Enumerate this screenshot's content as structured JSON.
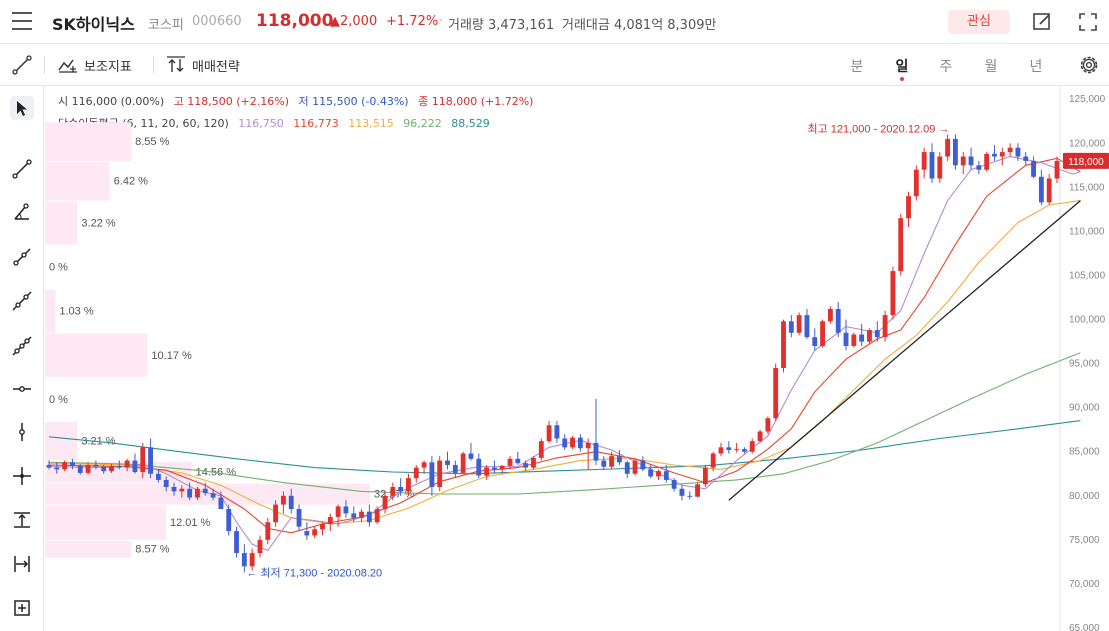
{
  "header": {
    "name": "SK하이닉스",
    "market": "코스피",
    "code": "000660",
    "price": "118,000",
    "change": "▲2,000",
    "change_pct": "+1.72%",
    "separator": "·",
    "volume": "거래량 3,473,161",
    "amount": "거래대금 4,081억 8,309만",
    "favorite_label": "관심"
  },
  "toolbar": {
    "indicators_label": "보조지표",
    "strategy_label": "매매전략",
    "periods": [
      "분",
      "일",
      "주",
      "월",
      "년"
    ],
    "active_period": "일"
  },
  "legend": {
    "open": "시 116,000 (0.00%)",
    "high": "고 118,500 (+2.16%)",
    "low": "저 115,500 (-0.43%)",
    "close": "종 118,000 (+1.72%)",
    "ma_title": "단순이동평균 (6, 11, 20, 60, 120)",
    "ma_values": [
      "116,750",
      "116,773",
      "113,515",
      "96,222",
      "88,529"
    ]
  },
  "left_tools": [
    "cursor-arrow-icon",
    "line-icon",
    "angle-line-icon",
    "ray-icon",
    "extended-line-icon",
    "trend-channel-icon",
    "horizontal-line-icon",
    "vertical-line-icon",
    "crosshair-icon",
    "price-range-icon",
    "date-range-icon",
    "add-box-icon"
  ],
  "colors": {
    "up": "#e0312e",
    "down": "#3e5fd3",
    "ma6": "#b58ad9",
    "ma11": "#e8442c",
    "ma20": "#f2ad3c",
    "ma60": "#6fb26b",
    "ma120": "#2b8f97",
    "volume_profile": "#fde8f4"
  },
  "chart_data": {
    "type": "candlestick",
    "y_ticks": [
      125000,
      120000,
      115000,
      110000,
      105000,
      100000,
      95000,
      90000,
      85000,
      80000,
      75000,
      70000,
      65000
    ],
    "y_tick_labels": [
      "125,000",
      "120,000",
      "115,000",
      "110,000",
      "105,000",
      "100,000",
      "95,000",
      "90,000",
      "85,000",
      "80,000",
      "75,000",
      "70,000",
      "65,000"
    ],
    "ylim": [
      65000,
      126500
    ],
    "current_price_label": "118,000",
    "current_price": 118000,
    "high_annotation": "최고 121,000 - 2020.12.09 →",
    "high_value": 121000,
    "low_annotation": "← 최저 71,300 - 2020.08.20",
    "low_value": 71300,
    "volume_profile": [
      {
        "label": "8.55 %",
        "pct": 8.55,
        "low": 118000,
        "high": 122500
      },
      {
        "label": "6.42 %",
        "pct": 6.42,
        "low": 113500,
        "high": 118000
      },
      {
        "label": "3.22 %",
        "pct": 3.22,
        "low": 108500,
        "high": 113500
      },
      {
        "label": "0 %",
        "pct": 0,
        "low": 103500,
        "high": 108500
      },
      {
        "label": "1.03 %",
        "pct": 1.03,
        "low": 98500,
        "high": 103500
      },
      {
        "label": "10.17 %",
        "pct": 10.17,
        "low": 93500,
        "high": 98500
      },
      {
        "label": "0 %",
        "pct": 0,
        "low": 88500,
        "high": 93500
      },
      {
        "label": "3.21 %",
        "pct": 3.21,
        "low": 84000,
        "high": 88500
      },
      {
        "label": "14.56 %",
        "pct": 14.56,
        "low": 81500,
        "high": 84000
      },
      {
        "label": "32.27 %",
        "pct": 32.27,
        "low": 79000,
        "high": 81500
      },
      {
        "label": "12.01 %",
        "pct": 12.01,
        "low": 75000,
        "high": 79000
      },
      {
        "label": "8.57 %",
        "pct": 8.57,
        "low": 73000,
        "high": 75000
      }
    ],
    "candles": [
      [
        83500,
        84000,
        83000,
        83200
      ],
      [
        83200,
        83800,
        82500,
        83000
      ],
      [
        83000,
        84000,
        82800,
        83800
      ],
      [
        83800,
        84200,
        83000,
        83400
      ],
      [
        83400,
        83600,
        82400,
        82600
      ],
      [
        82600,
        83800,
        82400,
        83500
      ],
      [
        83500,
        84000,
        83000,
        83300
      ],
      [
        83300,
        83500,
        82500,
        82800
      ],
      [
        82800,
        83600,
        82600,
        83400
      ],
      [
        83400,
        84000,
        83000,
        83200
      ],
      [
        83200,
        84200,
        82800,
        84000
      ],
      [
        84000,
        84800,
        82500,
        82700
      ],
      [
        82700,
        86000,
        82000,
        85500
      ],
      [
        85500,
        86500,
        82000,
        82500
      ],
      [
        82500,
        83000,
        81500,
        81800
      ],
      [
        81800,
        82200,
        80500,
        81000
      ],
      [
        81000,
        81500,
        80000,
        80500
      ],
      [
        80500,
        81200,
        79800,
        80800
      ],
      [
        80800,
        81500,
        79500,
        79800
      ],
      [
        79800,
        81000,
        79500,
        80800
      ],
      [
        80800,
        81500,
        80000,
        80300
      ],
      [
        80300,
        80800,
        79500,
        79800
      ],
      [
        79800,
        80500,
        78500,
        78500
      ],
      [
        78500,
        79000,
        75500,
        76000
      ],
      [
        76000,
        76500,
        73000,
        73500
      ],
      [
        73500,
        74500,
        71300,
        72000
      ],
      [
        72000,
        74000,
        71500,
        73500
      ],
      [
        73500,
        75500,
        73000,
        75000
      ],
      [
        75000,
        77500,
        74500,
        77000
      ],
      [
        77000,
        79500,
        76500,
        79000
      ],
      [
        79000,
        80500,
        78000,
        80000
      ],
      [
        80000,
        80800,
        78000,
        78500
      ],
      [
        78500,
        79000,
        76000,
        76500
      ],
      [
        76000,
        77000,
        75000,
        75500
      ],
      [
        75500,
        76500,
        75200,
        76200
      ],
      [
        76200,
        77000,
        75500,
        76800
      ],
      [
        76800,
        78000,
        76000,
        77600
      ],
      [
        77600,
        79000,
        76500,
        78800
      ],
      [
        78800,
        79500,
        77500,
        78000
      ],
      [
        78000,
        78800,
        77000,
        77500
      ],
      [
        77500,
        78500,
        77000,
        78200
      ],
      [
        78200,
        79000,
        76500,
        77000
      ],
      [
        77000,
        78800,
        76800,
        78500
      ],
      [
        78500,
        80500,
        78000,
        80000
      ],
      [
        80000,
        81500,
        79500,
        81000
      ],
      [
        81000,
        82000,
        80000,
        80500
      ],
      [
        80500,
        82500,
        80000,
        82000
      ],
      [
        82000,
        83500,
        81500,
        83200
      ],
      [
        83200,
        84000,
        82500,
        83800
      ],
      [
        83800,
        84500,
        80000,
        81000
      ],
      [
        81000,
        84500,
        80500,
        84000
      ],
      [
        84000,
        85000,
        83000,
        83500
      ],
      [
        83500,
        84000,
        82000,
        82600
      ],
      [
        82600,
        85000,
        82500,
        84800
      ],
      [
        84800,
        86000,
        84000,
        84200
      ],
      [
        84200,
        84800,
        82000,
        82300
      ],
      [
        82300,
        83500,
        81800,
        83200
      ],
      [
        83200,
        84000,
        82500,
        83000
      ],
      [
        83000,
        83500,
        82500,
        83400
      ],
      [
        83400,
        84500,
        83000,
        84200
      ],
      [
        84200,
        85000,
        83500,
        83700
      ],
      [
        83700,
        84000,
        82800,
        83200
      ],
      [
        83200,
        84500,
        83000,
        84300
      ],
      [
        84300,
        86500,
        84000,
        86200
      ],
      [
        86200,
        88500,
        86000,
        88000
      ],
      [
        88000,
        88500,
        86000,
        86500
      ],
      [
        86500,
        87000,
        85200,
        85500
      ],
      [
        85500,
        86800,
        85300,
        86600
      ],
      [
        86600,
        87000,
        85000,
        85400
      ],
      [
        85400,
        86500,
        83000,
        86000
      ],
      [
        86000,
        91000,
        83500,
        84000
      ],
      [
        84000,
        84500,
        83000,
        83300
      ],
      [
        83300,
        85000,
        83000,
        84500
      ],
      [
        84500,
        85200,
        83500,
        83800
      ],
      [
        83800,
        84000,
        82000,
        82500
      ],
      [
        82500,
        84200,
        82300,
        84000
      ],
      [
        84000,
        84500,
        82800,
        83000
      ],
      [
        83000,
        83500,
        82000,
        82200
      ],
      [
        82200,
        83000,
        81800,
        82800
      ],
      [
        82800,
        83500,
        81500,
        81800
      ],
      [
        81800,
        82000,
        80500,
        80800
      ],
      [
        80800,
        81200,
        79500,
        80000
      ],
      [
        80000,
        80500,
        79600,
        79900
      ],
      [
        79900,
        81500,
        79800,
        81300
      ],
      [
        81300,
        83500,
        81000,
        83200
      ],
      [
        83200,
        85000,
        82800,
        84800
      ],
      [
        84800,
        86000,
        84500,
        85500
      ],
      [
        85500,
        86200,
        84800,
        85200
      ],
      [
        85200,
        86000,
        84900,
        85300
      ],
      [
        85300,
        85500,
        84800,
        85000
      ],
      [
        85000,
        86500,
        84800,
        86200
      ],
      [
        86200,
        87500,
        86000,
        87300
      ],
      [
        87300,
        89000,
        87000,
        88800
      ],
      [
        88800,
        95000,
        88500,
        94500
      ],
      [
        94500,
        100000,
        94000,
        99800
      ],
      [
        99800,
        100500,
        98000,
        98500
      ],
      [
        98500,
        100800,
        98200,
        100500
      ],
      [
        100500,
        101200,
        97800,
        98000
      ],
      [
        98000,
        99000,
        96500,
        97000
      ],
      [
        97000,
        100000,
        96800,
        99800
      ],
      [
        99800,
        101500,
        99500,
        101200
      ],
      [
        101200,
        102000,
        98000,
        98500
      ],
      [
        98500,
        100000,
        96500,
        97000
      ],
      [
        97000,
        98500,
        96800,
        98300
      ],
      [
        98300,
        99500,
        97000,
        97500
      ],
      [
        97500,
        99000,
        97200,
        98800
      ],
      [
        98800,
        99800,
        97500,
        98000
      ],
      [
        98000,
        101000,
        97500,
        100500
      ],
      [
        100500,
        106000,
        100000,
        105500
      ],
      [
        105500,
        112000,
        105000,
        111500
      ],
      [
        111500,
        114500,
        110500,
        114000
      ],
      [
        114000,
        117500,
        113500,
        117000
      ],
      [
        117000,
        119500,
        116000,
        119000
      ],
      [
        119000,
        120000,
        115500,
        116000
      ],
      [
        116000,
        119000,
        115500,
        118500
      ],
      [
        118500,
        121000,
        118000,
        120500
      ],
      [
        120500,
        121000,
        117000,
        117500
      ],
      [
        117500,
        119000,
        116500,
        118500
      ],
      [
        118500,
        119500,
        117000,
        117500
      ],
      [
        117500,
        118000,
        116500,
        117000
      ],
      [
        117000,
        119000,
        116800,
        118800
      ],
      [
        118800,
        119800,
        118000,
        118500
      ],
      [
        118500,
        119500,
        117500,
        119000
      ],
      [
        119000,
        120000,
        118500,
        119500
      ],
      [
        119500,
        120000,
        118000,
        118500
      ],
      [
        118500,
        119000,
        117500,
        118000
      ],
      [
        118000,
        118500,
        116000,
        116200
      ],
      [
        116200,
        117000,
        113000,
        113300
      ],
      [
        113300,
        116500,
        113000,
        116000
      ],
      [
        116000,
        118500,
        115500,
        118000
      ]
    ],
    "ma6": [
      [
        0,
        83300
      ],
      [
        8,
        83200
      ],
      [
        12,
        83600
      ],
      [
        15,
        82500
      ],
      [
        19,
        80600
      ],
      [
        22,
        80000
      ],
      [
        24,
        77000
      ],
      [
        26,
        74500
      ],
      [
        28,
        73800
      ],
      [
        31,
        77500
      ],
      [
        34,
        77200
      ],
      [
        37,
        76800
      ],
      [
        41,
        77800
      ],
      [
        45,
        80500
      ],
      [
        50,
        82500
      ],
      [
        55,
        83300
      ],
      [
        60,
        83300
      ],
      [
        64,
        85500
      ],
      [
        68,
        86300
      ],
      [
        72,
        85200
      ],
      [
        77,
        83000
      ],
      [
        81,
        81200
      ],
      [
        84,
        80800
      ],
      [
        88,
        84000
      ],
      [
        92,
        86800
      ],
      [
        95,
        92000
      ],
      [
        98,
        96500
      ],
      [
        102,
        99200
      ],
      [
        106,
        98500
      ],
      [
        109,
        101000
      ],
      [
        112,
        107500
      ],
      [
        115,
        113500
      ],
      [
        118,
        117000
      ],
      [
        123,
        118500
      ],
      [
        127,
        117800
      ],
      [
        131,
        116500
      ],
      [
        132,
        116750
      ]
    ],
    "ma11": [
      [
        0,
        83500
      ],
      [
        10,
        83300
      ],
      [
        15,
        82900
      ],
      [
        20,
        81200
      ],
      [
        25,
        78500
      ],
      [
        28,
        76300
      ],
      [
        31,
        75800
      ],
      [
        35,
        76800
      ],
      [
        40,
        77600
      ],
      [
        45,
        79200
      ],
      [
        50,
        81600
      ],
      [
        55,
        82800
      ],
      [
        60,
        83200
      ],
      [
        65,
        84300
      ],
      [
        70,
        85000
      ],
      [
        75,
        84200
      ],
      [
        80,
        82600
      ],
      [
        84,
        81500
      ],
      [
        88,
        82800
      ],
      [
        92,
        85300
      ],
      [
        95,
        87600
      ],
      [
        98,
        91800
      ],
      [
        102,
        95500
      ],
      [
        106,
        97800
      ],
      [
        109,
        98800
      ],
      [
        112,
        102500
      ],
      [
        116,
        108500
      ],
      [
        120,
        114000
      ],
      [
        125,
        117500
      ],
      [
        129,
        118300
      ],
      [
        132,
        116773
      ]
    ],
    "ma20": [
      [
        0,
        83700
      ],
      [
        10,
        83500
      ],
      [
        17,
        82600
      ],
      [
        22,
        81200
      ],
      [
        27,
        79000
      ],
      [
        31,
        77500
      ],
      [
        36,
        76800
      ],
      [
        41,
        77200
      ],
      [
        46,
        78600
      ],
      [
        51,
        80600
      ],
      [
        56,
        82200
      ],
      [
        62,
        83000
      ],
      [
        68,
        84000
      ],
      [
        74,
        84300
      ],
      [
        80,
        83500
      ],
      [
        86,
        83000
      ],
      [
        91,
        84000
      ],
      [
        95,
        85500
      ],
      [
        99,
        88500
      ],
      [
        103,
        92000
      ],
      [
        107,
        95500
      ],
      [
        111,
        98200
      ],
      [
        115,
        102000
      ],
      [
        119,
        106500
      ],
      [
        124,
        111000
      ],
      [
        128,
        113000
      ],
      [
        132,
        113515
      ]
    ],
    "ma60": [
      [
        0,
        83800
      ],
      [
        10,
        83600
      ],
      [
        20,
        82800
      ],
      [
        30,
        81500
      ],
      [
        40,
        80500
      ],
      [
        50,
        80200
      ],
      [
        60,
        80200
      ],
      [
        70,
        80700
      ],
      [
        80,
        81300
      ],
      [
        88,
        81800
      ],
      [
        94,
        82500
      ],
      [
        100,
        84000
      ],
      [
        106,
        86000
      ],
      [
        112,
        88500
      ],
      [
        118,
        91000
      ],
      [
        125,
        93800
      ],
      [
        132,
        96222
      ]
    ],
    "ma120": [
      [
        0,
        86700
      ],
      [
        8,
        86000
      ],
      [
        16,
        85100
      ],
      [
        24,
        84200
      ],
      [
        34,
        83200
      ],
      [
        44,
        82700
      ],
      [
        54,
        82500
      ],
      [
        64,
        82800
      ],
      [
        74,
        83100
      ],
      [
        84,
        83400
      ],
      [
        94,
        84200
      ],
      [
        104,
        85200
      ],
      [
        114,
        86500
      ],
      [
        124,
        87600
      ],
      [
        132,
        88529
      ]
    ],
    "trend_line": [
      [
        87,
        79500
      ],
      [
        132,
        113500
      ]
    ]
  }
}
